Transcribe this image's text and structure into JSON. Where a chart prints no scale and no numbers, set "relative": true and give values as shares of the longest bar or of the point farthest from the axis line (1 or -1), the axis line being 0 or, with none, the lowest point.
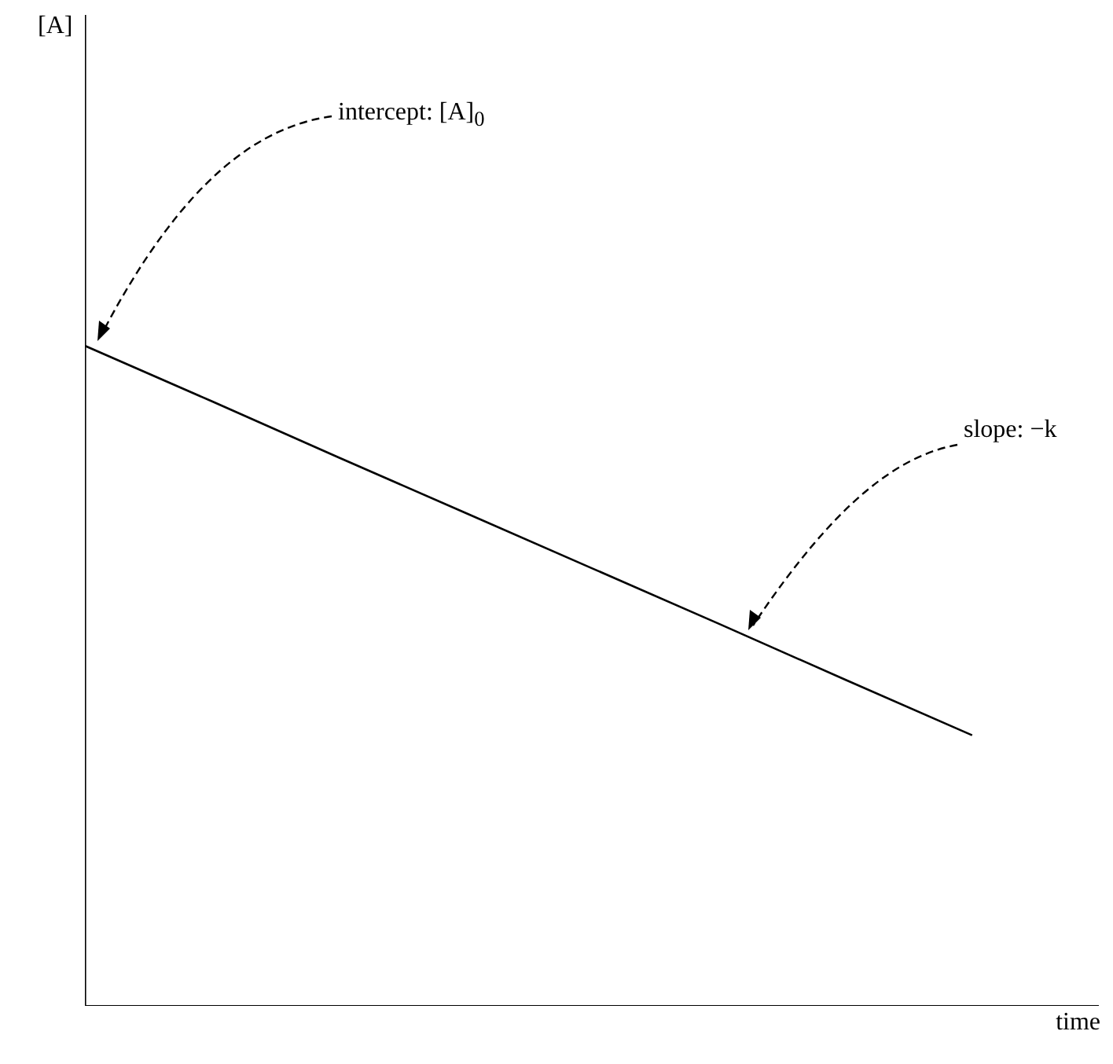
{
  "chart_data": {
    "type": "line",
    "relative": true,
    "xlabel": "time",
    "categories": [
      null,
      null,
      null,
      null,
      null,
      null,
      null,
      null,
      null
    ],
    "series": [
      {
        "color": "#000000",
        "values": [
          1,
          0.916,
          0.831,
          0.747,
          0.663,
          0.579,
          0.494,
          0.41,
          null
        ]
      }
    ],
    "annotations": [
      "[A]",
      "intercept:  [A]$_{0}$",
      "slope: −k"
    ],
    "marker": "none",
    "line_style": "solid",
    "grid": false,
    "legend": false
  }
}
